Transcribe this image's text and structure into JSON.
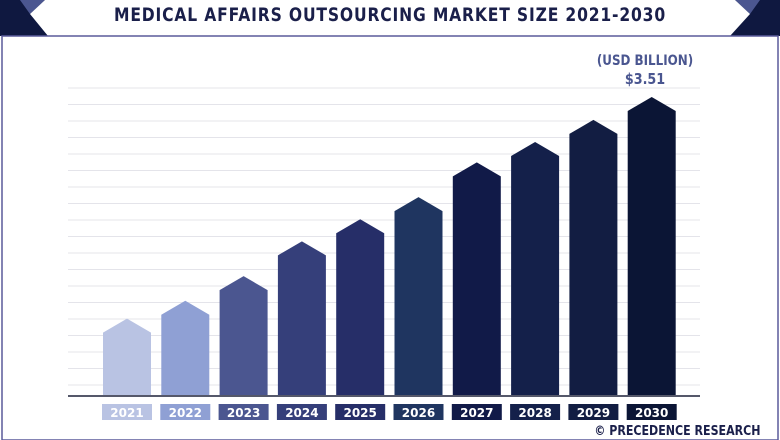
{
  "title": "MEDICAL AFFAIRS OUTSOURCING MARKET SIZE 2021-2030",
  "source": "© PRECEDENCE RESEARCH",
  "chart_data": {
    "type": "bar",
    "title": "MEDICAL AFFAIRS OUTSOURCING MARKET SIZE 2021-2030",
    "unit_label": "(USD BILLION)",
    "annotation": "$3.51",
    "categories": [
      "2021",
      "2022",
      "2023",
      "2024",
      "2025",
      "2026",
      "2027",
      "2028",
      "2029",
      "2030"
    ],
    "values": [
      0.9,
      1.11,
      1.4,
      1.81,
      2.07,
      2.33,
      2.74,
      2.98,
      3.24,
      3.51
    ],
    "ylim": [
      0,
      3.51
    ],
    "grid": true,
    "colors": [
      "#b9c3e3",
      "#8fa0d4",
      "#4b5690",
      "#353f7a",
      "#262e68",
      "#1f3560",
      "#111a48",
      "#14204a",
      "#121d42",
      "#0b1535"
    ]
  }
}
